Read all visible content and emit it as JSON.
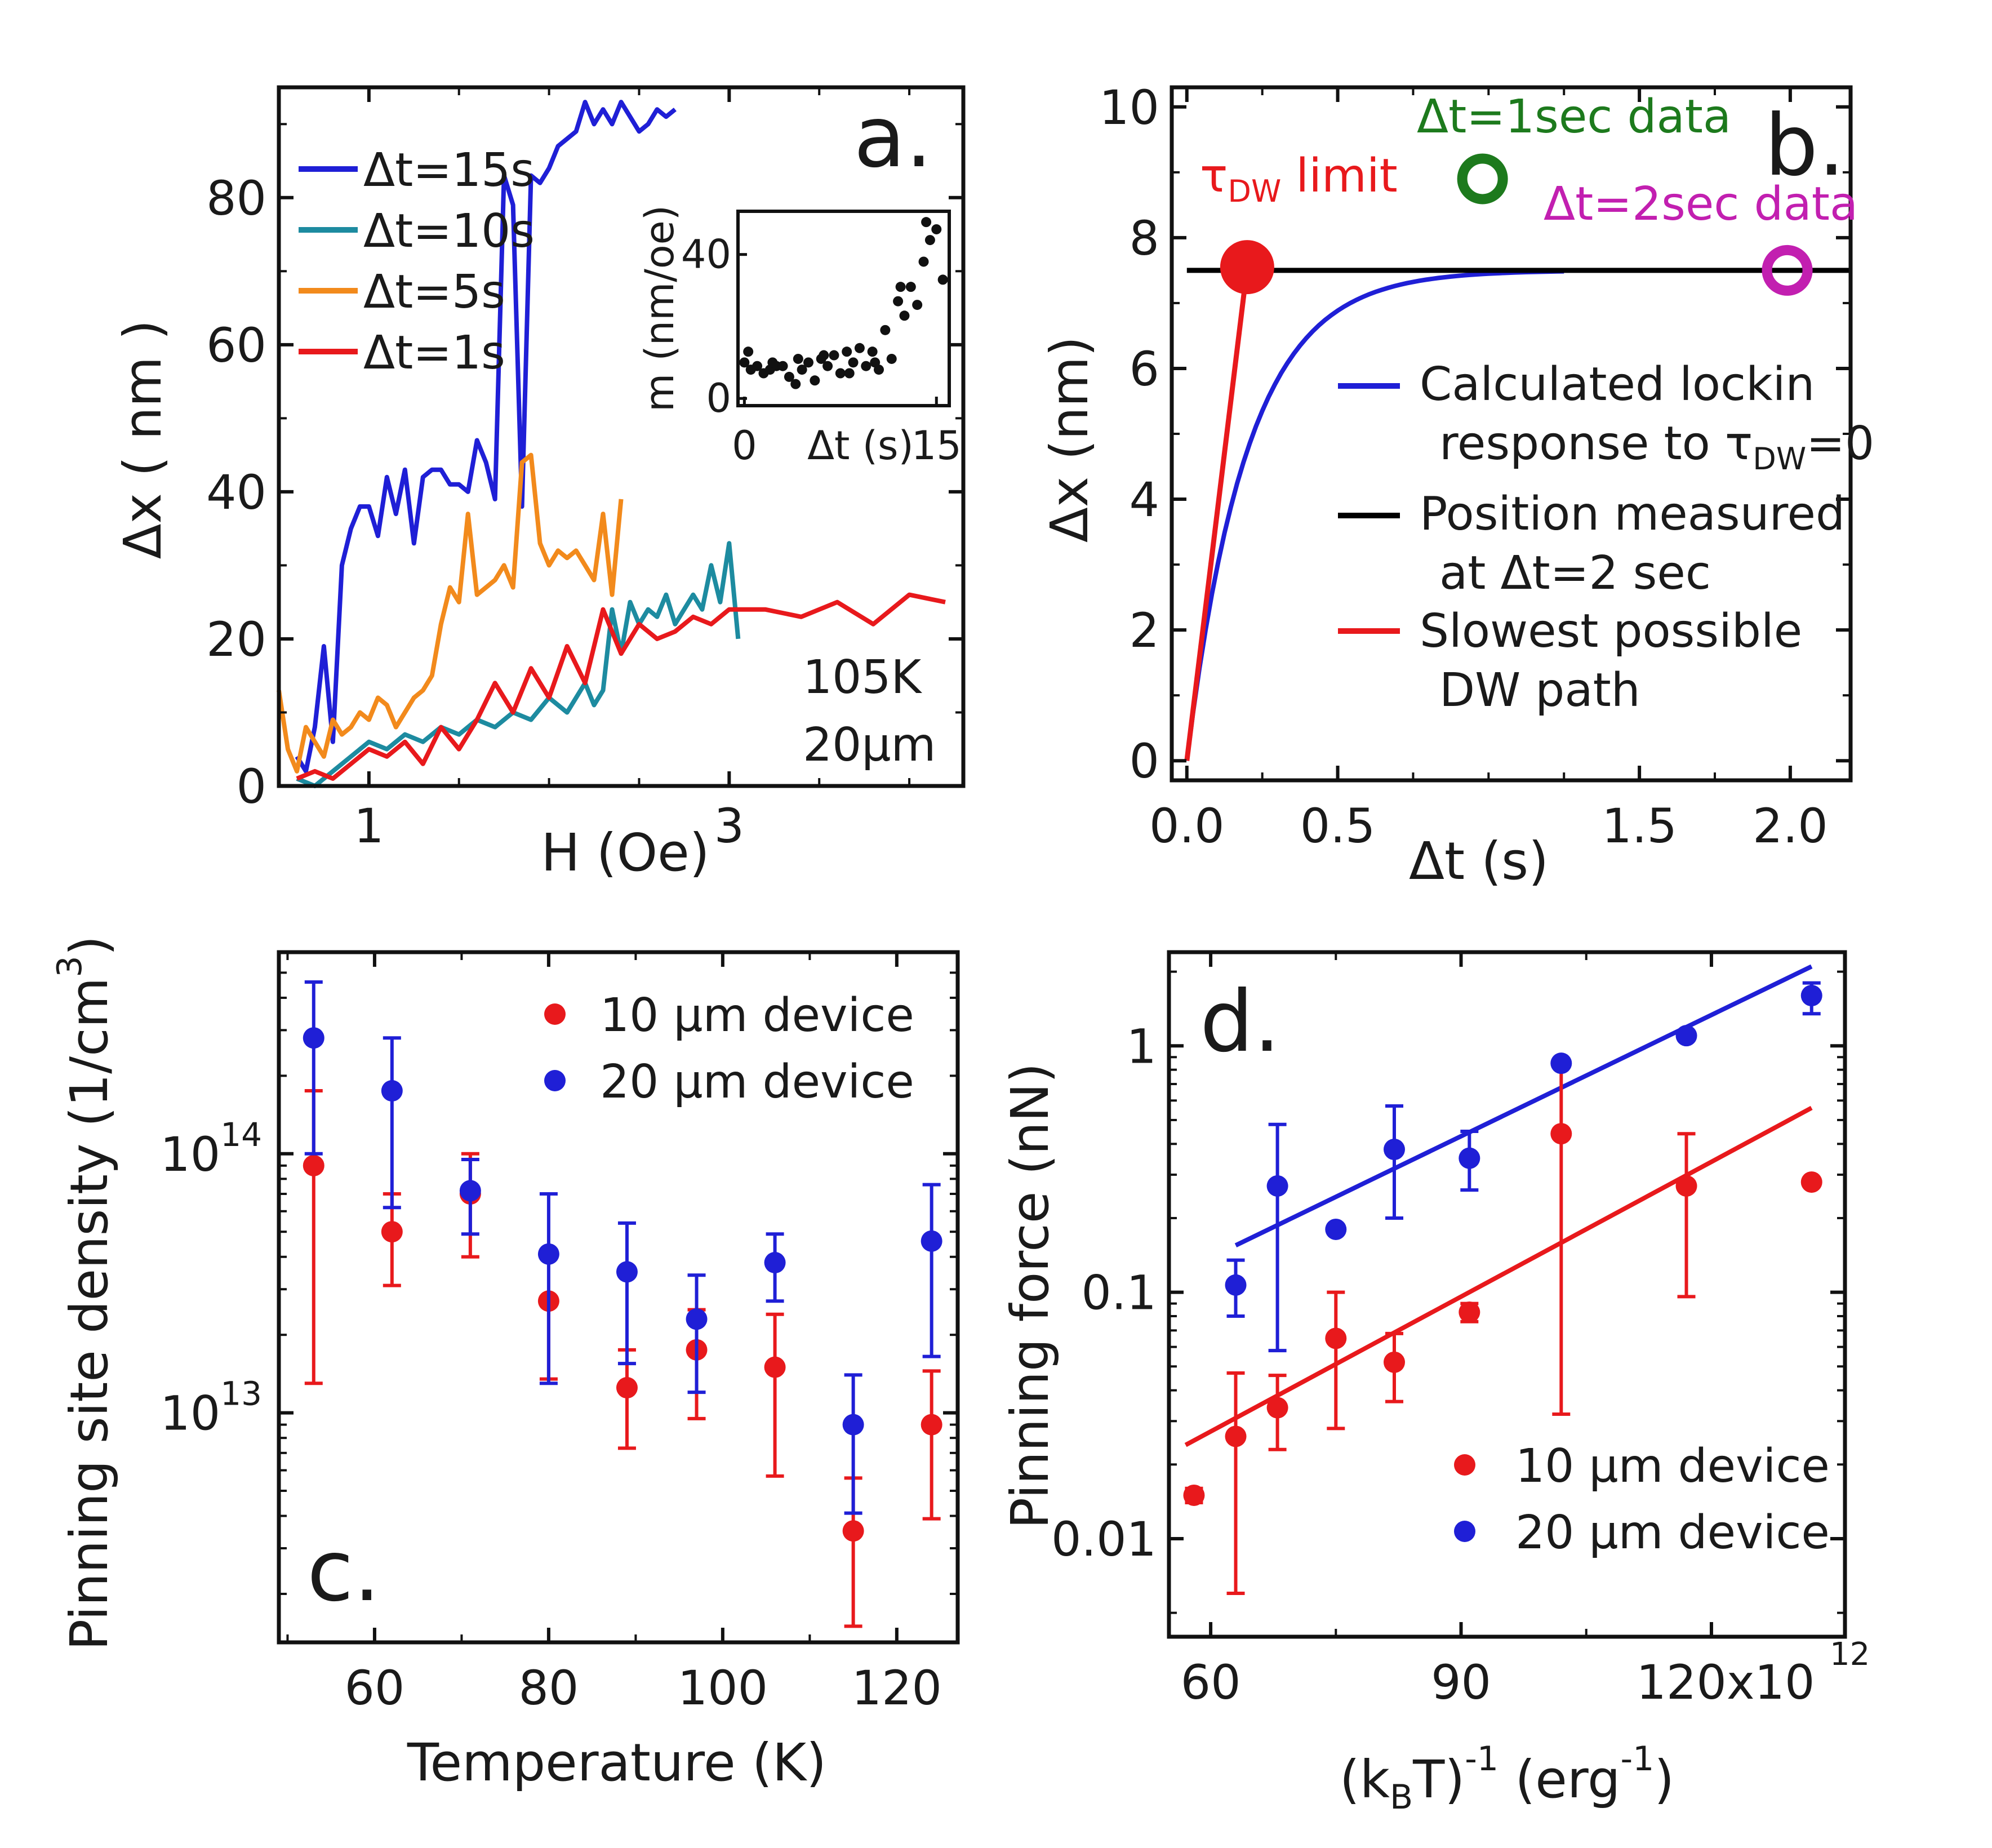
{
  "chart_data": [
    {
      "id": "a",
      "type": "line",
      "panel_letter": "a.",
      "xlabel": "H (Oe)",
      "ylabel": "Δx ( nm )",
      "xlim": [
        0.5,
        4.3
      ],
      "ylim": [
        0,
        95
      ],
      "xticks": [
        {
          "v": 1,
          "label": "1"
        },
        {
          "v": 3,
          "label": "3"
        }
      ],
      "yticks": [
        {
          "v": 0,
          "label": "0"
        },
        {
          "v": 20,
          "label": "20"
        },
        {
          "v": 40,
          "label": "40"
        },
        {
          "v": 60,
          "label": "60"
        },
        {
          "v": 80,
          "label": "80"
        }
      ],
      "annotations": [
        "105K",
        "20μm"
      ],
      "series": [
        {
          "name": "Δt=15s",
          "color": "#1f1fd6",
          "x": [
            0.6,
            0.65,
            0.7,
            0.75,
            0.8,
            0.85,
            0.9,
            0.95,
            1.0,
            1.05,
            1.1,
            1.15,
            1.2,
            1.25,
            1.3,
            1.35,
            1.4,
            1.45,
            1.5,
            1.55,
            1.6,
            1.65,
            1.7,
            1.75,
            1.8,
            1.85,
            1.9,
            1.95,
            2.0,
            2.05,
            2.1,
            2.15,
            2.2,
            2.25,
            2.3,
            2.35,
            2.4,
            2.45,
            2.5,
            2.55,
            2.6,
            2.65,
            2.7
          ],
          "y": [
            4,
            2,
            8,
            19,
            6,
            30,
            35,
            38,
            38,
            34,
            42,
            37,
            43,
            33,
            42,
            43,
            43,
            41,
            41,
            40,
            47,
            44,
            39,
            83,
            79,
            38,
            83,
            82,
            84,
            87,
            88,
            89,
            93,
            90,
            92,
            90,
            93,
            91,
            89,
            90,
            92,
            91,
            92
          ]
        },
        {
          "name": "Δt=10s",
          "color": "#1d8ba0",
          "x": [
            0.6,
            0.7,
            0.8,
            0.9,
            1.0,
            1.1,
            1.2,
            1.3,
            1.4,
            1.5,
            1.6,
            1.7,
            1.8,
            1.9,
            2.0,
            2.1,
            2.2,
            2.25,
            2.3,
            2.35,
            2.4,
            2.45,
            2.5,
            2.55,
            2.6,
            2.65,
            2.7,
            2.75,
            2.8,
            2.85,
            2.9,
            2.95,
            3.0,
            3.05
          ],
          "y": [
            1,
            0,
            2,
            4,
            6,
            5,
            7,
            6,
            8,
            7,
            9,
            8,
            10,
            9,
            12,
            10,
            14,
            11,
            13,
            24,
            18,
            25,
            22,
            24,
            23,
            26,
            22,
            24,
            26,
            24,
            30,
            25,
            33,
            20
          ]
        },
        {
          "name": "Δt=5s",
          "color": "#f28a1c",
          "x": [
            0.5,
            0.55,
            0.6,
            0.65,
            0.7,
            0.75,
            0.8,
            0.85,
            0.9,
            0.95,
            1.0,
            1.05,
            1.1,
            1.15,
            1.2,
            1.25,
            1.3,
            1.35,
            1.4,
            1.45,
            1.5,
            1.55,
            1.6,
            1.65,
            1.7,
            1.75,
            1.8,
            1.85,
            1.9,
            1.95,
            2.0,
            2.05,
            2.1,
            2.15,
            2.2,
            2.25,
            2.3,
            2.35,
            2.4
          ],
          "y": [
            13,
            5,
            2,
            8,
            6,
            4,
            9,
            7,
            8,
            10,
            9,
            12,
            11,
            8,
            10,
            12,
            13,
            15,
            22,
            27,
            25,
            37,
            26,
            27,
            28,
            30,
            27,
            44,
            45,
            33,
            30,
            32,
            31,
            32,
            30,
            28,
            37,
            26,
            39
          ]
        },
        {
          "name": "Δt=1s",
          "color": "#e8191c",
          "x": [
            0.6,
            0.7,
            0.8,
            0.9,
            1.0,
            1.1,
            1.2,
            1.3,
            1.4,
            1.5,
            1.6,
            1.7,
            1.8,
            1.9,
            2.0,
            2.1,
            2.2,
            2.3,
            2.4,
            2.5,
            2.6,
            2.7,
            2.8,
            2.9,
            3.0,
            3.2,
            3.4,
            3.6,
            3.8,
            4.0,
            4.2
          ],
          "y": [
            1,
            2,
            1,
            3,
            5,
            4,
            6,
            3,
            8,
            5,
            9,
            14,
            10,
            16,
            12,
            19,
            14,
            24,
            18,
            22,
            20,
            21,
            23,
            22,
            24,
            24,
            23,
            25,
            22,
            26,
            25
          ]
        }
      ],
      "inset": {
        "type": "scatter",
        "xlabel": "Δt (s)",
        "ylabel": "m (nm/oe)",
        "xlim": [
          -0.5,
          16
        ],
        "ylim": [
          -2,
          52
        ],
        "xticks": [
          {
            "v": 0,
            "label": "0"
          },
          {
            "v": 15,
            "label": "15"
          }
        ],
        "yticks": [
          {
            "v": 0,
            "label": "0"
          },
          {
            "v": 40,
            "label": "40"
          }
        ],
        "x": [
          0,
          0.5,
          1,
          1.5,
          2,
          2.5,
          3,
          3.5,
          4,
          4.5,
          5,
          5.5,
          6,
          6.5,
          7,
          7.5,
          8,
          8.5,
          9,
          9.5,
          10,
          10.5,
          11,
          11.5,
          12,
          12.5,
          13,
          13.5,
          14,
          14.5,
          15,
          15.5,
          0.3,
          2.2,
          4.2,
          6.2,
          8.2,
          10.2,
          12.2,
          14.2
        ],
        "y": [
          10,
          8,
          9,
          7,
          8,
          9,
          9,
          6,
          4,
          8,
          10,
          5,
          11,
          9,
          12,
          7,
          13,
          10,
          14,
          9,
          13,
          8,
          19,
          11,
          27,
          23,
          31,
          26,
          38,
          44,
          47,
          33,
          13,
          10,
          11,
          12,
          7,
          10,
          31,
          49
        ]
      }
    },
    {
      "id": "b",
      "type": "line",
      "panel_letter": "b.",
      "xlabel": "Δt (s)",
      "ylabel": "Δx (nm)",
      "xlim": [
        -0.05,
        2.2
      ],
      "ylim": [
        -0.3,
        10.3
      ],
      "xticks": [
        {
          "v": 0,
          "label": "0.0"
        },
        {
          "v": 0.5,
          "label": "0.5"
        },
        {
          "v": 1.5,
          "label": "1.5"
        },
        {
          "v": 2.0,
          "label": "2.0"
        }
      ],
      "yticks": [
        {
          "v": 0,
          "label": "0"
        },
        {
          "v": 2,
          "label": "2"
        },
        {
          "v": 4,
          "label": "4"
        },
        {
          "v": 6,
          "label": "6"
        },
        {
          "v": 8,
          "label": "8"
        },
        {
          "v": 10,
          "label": "10"
        }
      ],
      "series": [
        {
          "name": "Calculated lockin response to τDW=0",
          "color": "#1f1fd6",
          "tau": 0.2,
          "plateau": 7.5,
          "x_end": 1.25
        },
        {
          "name": "Position measured at Δt=2 sec",
          "color": "#000000",
          "x": [
            0,
            2.2
          ],
          "y": [
            7.5,
            7.5
          ]
        },
        {
          "name": "Slowest possible DW path",
          "color": "#e8191c",
          "x": [
            0,
            0.2
          ],
          "y": [
            0,
            7.55
          ]
        }
      ],
      "markers": [
        {
          "label": "τDW limit",
          "x": 0.2,
          "y": 7.55,
          "color": "#e8191c",
          "style": "filled"
        },
        {
          "label": "Δt=1sec data",
          "x": 0.98,
          "y": 8.9,
          "color": "#1d7a1d",
          "style": "open"
        },
        {
          "label": "Δt=2sec data",
          "x": 1.99,
          "y": 7.5,
          "color": "#c21fb0",
          "style": "open"
        }
      ]
    },
    {
      "id": "c",
      "type": "scatter",
      "panel_letter": "c.",
      "xlabel": "Temperature (K)",
      "ylabel": "Pinning site density (1/cm³)",
      "ylabel_base": "Pinning site density (1/cm",
      "ylabel_sup": "3",
      "ylabel_end": ")",
      "xlim": [
        49,
        127
      ],
      "yscale": "log",
      "ylim": [
        1300000000000.0,
        600000000000000.0
      ],
      "xticks": [
        {
          "v": 60,
          "label": "60"
        },
        {
          "v": 80,
          "label": "80"
        },
        {
          "v": 100,
          "label": "100"
        },
        {
          "v": 120,
          "label": "120"
        }
      ],
      "yticks": [
        {
          "v": 10000000000000.0,
          "base": "10",
          "exp": "13"
        },
        {
          "v": 100000000000000.0,
          "base": "10",
          "exp": "14"
        }
      ],
      "series": [
        {
          "name": "10 μm device",
          "color": "#e8191c",
          "x": [
            53,
            62,
            71,
            80,
            89,
            97,
            106,
            115,
            124
          ],
          "y": [
            90000000000000.0,
            50000000000000.0,
            70000000000000.0,
            27000000000000.0,
            12500000000000.0,
            17500000000000.0,
            15000000000000.0,
            3500000000000.0,
            9000000000000.0
          ],
          "yerr_low": [
            13000000000000.0,
            31000000000000.0,
            40000000000000.0,
            13500000000000.0,
            7300000000000.0,
            9500000000000.0,
            5700000000000.0,
            1500000000000.0,
            3900000000000.0
          ],
          "yerr_high": [
            175000000000000.0,
            70000000000000.0,
            100000000000000.0,
            27000000000000.0,
            17500000000000.0,
            25000000000000.0,
            24000000000000.0,
            5600000000000.0,
            14500000000000.0
          ]
        },
        {
          "name": "20 μm device",
          "color": "#1f1fd6",
          "x": [
            53,
            62,
            71,
            80,
            89,
            97,
            106,
            115,
            124
          ],
          "y": [
            280000000000000.0,
            175000000000000.0,
            72000000000000.0,
            41000000000000.0,
            35000000000000.0,
            23000000000000.0,
            38000000000000.0,
            9000000000000.0,
            46000000000000.0
          ],
          "yerr_low": [
            100000000000000.0,
            62000000000000.0,
            49000000000000.0,
            13000000000000.0,
            15500000000000.0,
            12000000000000.0,
            27000000000000.0,
            4100000000000.0,
            16500000000000.0
          ],
          "yerr_high": [
            460000000000000.0,
            280000000000000.0,
            95000000000000.0,
            70000000000000.0,
            54000000000000.0,
            34000000000000.0,
            49000000000000.0,
            14000000000000.0,
            76000000000000.0
          ]
        }
      ]
    },
    {
      "id": "d",
      "type": "scatter",
      "panel_letter": "d.",
      "xlabel": "(k_BT)⁻¹ (erg⁻¹)",
      "xlabel_parts": {
        "open": "(k",
        "sub": "B",
        "mid": "T)",
        "sup1": "-1",
        "rest": " (erg",
        "sup2": "-1",
        "close": ")"
      },
      "ylabel": "Pinning force (nN)",
      "yscale": "log",
      "xlim": [
        55,
        136
      ],
      "ylim": [
        0.004,
        2.4
      ],
      "xticks": [
        {
          "v": 60,
          "label": "60"
        },
        {
          "v": 90,
          "label": "90"
        },
        {
          "v": 120,
          "label": "120x10"
        }
      ],
      "xtick_exp": "12",
      "yticks": [
        {
          "v": 0.01,
          "label": "0.01"
        },
        {
          "v": 0.1,
          "label": "0.1"
        },
        {
          "v": 1,
          "label": "1"
        }
      ],
      "series": [
        {
          "name": "10 μm device",
          "color": "#e8191c",
          "x": [
            58,
            63,
            68,
            75,
            82,
            91,
            102,
            117,
            132
          ],
          "y": [
            0.015,
            0.026,
            0.034,
            0.065,
            0.052,
            0.083,
            0.44,
            0.27,
            0.28
          ],
          "yerr_low": [
            0.014,
            0.006,
            0.023,
            0.028,
            0.036,
            0.076,
            0.032,
            0.096,
            0.28
          ],
          "yerr_high": [
            0.016,
            0.047,
            0.046,
            0.1,
            0.068,
            0.09,
            0.85,
            0.44,
            0.28
          ],
          "fit": {
            "x": [
              57,
              132
            ],
            "y": [
              0.024,
              0.56
            ]
          }
        },
        {
          "name": "20 μm device",
          "color": "#1f1fd6",
          "x": [
            63,
            68,
            75,
            82,
            91,
            102,
            117,
            132
          ],
          "y": [
            0.107,
            0.27,
            0.18,
            0.38,
            0.35,
            0.85,
            1.1,
            1.6
          ],
          "yerr_low": [
            0.08,
            0.058,
            0.18,
            0.2,
            0.26,
            0.85,
            1.1,
            1.35
          ],
          "yerr_high": [
            0.135,
            0.48,
            0.18,
            0.57,
            0.45,
            0.85,
            1.1,
            1.8
          ],
          "fit": {
            "x": [
              63,
              132
            ],
            "y": [
              0.155,
              2.1
            ]
          }
        }
      ]
    }
  ]
}
